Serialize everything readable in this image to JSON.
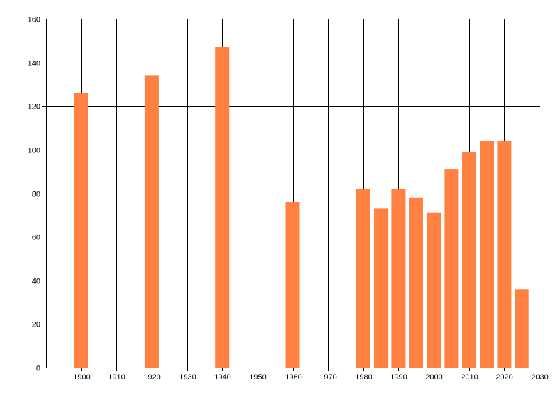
{
  "chart_data": {
    "type": "bar",
    "x": [
      1900,
      1920,
      1940,
      1960,
      1980,
      1985,
      1990,
      1995,
      2000,
      2005,
      2010,
      2015,
      2020,
      2025
    ],
    "values": [
      126,
      134,
      147,
      76,
      82,
      73,
      82,
      78,
      71,
      91,
      99,
      104,
      104,
      36
    ],
    "xlim": [
      1890,
      2030
    ],
    "ylim": [
      0,
      160
    ],
    "x_ticks": [
      1900,
      1910,
      1920,
      1930,
      1940,
      1950,
      1960,
      1970,
      1980,
      1990,
      2000,
      2010,
      2020,
      2030
    ],
    "y_ticks": [
      0,
      20,
      40,
      60,
      80,
      100,
      120,
      140,
      160
    ],
    "bar_color": "#ff8040",
    "grid": true,
    "grid_color": "#000000",
    "legend": "none",
    "title": "",
    "xlabel": "",
    "ylabel": ""
  }
}
